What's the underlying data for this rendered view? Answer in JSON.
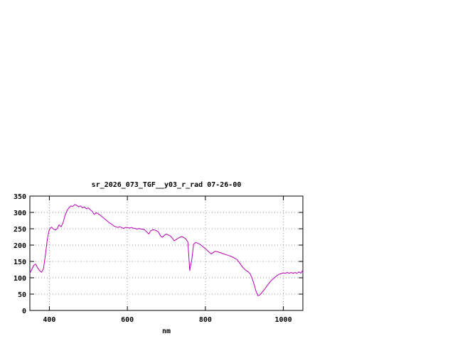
{
  "page": {
    "background": "#ffffff"
  },
  "chart_data": {
    "type": "line",
    "title": "sr_2026_073_TGF__y03_r_rad 07-26-00",
    "xlabel": "nm",
    "ylabel": "",
    "xlim": [
      350,
      1050
    ],
    "ylim": [
      0,
      350
    ],
    "xticks": [
      400,
      600,
      800,
      1000
    ],
    "yticks": [
      0,
      50,
      100,
      150,
      200,
      250,
      300,
      350
    ],
    "grid": true,
    "legend": "none",
    "line_color": "#b400b4",
    "grid_color": "#9a9a9a",
    "axis_color": "#000000",
    "series": [
      {
        "name": "sr_2026_073_TGF__y03_r_rad",
        "color": "#b400b4",
        "x": [
          350,
          355,
          360,
          365,
          370,
          375,
          380,
          385,
          390,
          395,
          400,
          405,
          410,
          415,
          420,
          425,
          430,
          435,
          440,
          445,
          450,
          455,
          460,
          465,
          470,
          475,
          480,
          485,
          490,
          495,
          500,
          505,
          510,
          515,
          520,
          525,
          530,
          535,
          540,
          545,
          550,
          555,
          560,
          565,
          570,
          575,
          580,
          585,
          590,
          595,
          600,
          605,
          610,
          615,
          620,
          625,
          630,
          635,
          640,
          645,
          650,
          655,
          660,
          665,
          670,
          675,
          680,
          685,
          690,
          695,
          700,
          705,
          710,
          715,
          720,
          725,
          730,
          735,
          740,
          745,
          750,
          755,
          760,
          765,
          770,
          775,
          780,
          785,
          790,
          795,
          800,
          805,
          810,
          815,
          820,
          825,
          830,
          835,
          840,
          845,
          850,
          855,
          860,
          865,
          870,
          875,
          880,
          885,
          890,
          895,
          900,
          905,
          910,
          915,
          920,
          925,
          930,
          935,
          940,
          945,
          950,
          955,
          960,
          965,
          970,
          975,
          980,
          985,
          990,
          995,
          1000,
          1005,
          1010,
          1015,
          1020,
          1025,
          1030,
          1035,
          1040,
          1045,
          1050
        ],
        "y": [
          115,
          125,
          138,
          142,
          130,
          122,
          117,
          128,
          170,
          220,
          248,
          255,
          250,
          246,
          250,
          262,
          256,
          268,
          290,
          305,
          314,
          320,
          318,
          324,
          322,
          317,
          320,
          314,
          317,
          311,
          314,
          308,
          303,
          294,
          299,
          296,
          292,
          287,
          282,
          277,
          272,
          267,
          264,
          259,
          256,
          254,
          256,
          254,
          251,
          254,
          254,
          252,
          254,
          252,
          251,
          249,
          251,
          249,
          249,
          246,
          240,
          234,
          244,
          247,
          246,
          244,
          240,
          228,
          224,
          230,
          234,
          231,
          228,
          222,
          213,
          217,
          221,
          224,
          226,
          223,
          219,
          210,
          122,
          155,
          203,
          208,
          206,
          203,
          199,
          194,
          189,
          184,
          178,
          173,
          177,
          181,
          180,
          178,
          176,
          174,
          172,
          170,
          168,
          166,
          163,
          160,
          157,
          150,
          142,
          133,
          127,
          122,
          118,
          112,
          98,
          80,
          58,
          45,
          48,
          55,
          62,
          70,
          78,
          86,
          93,
          98,
          103,
          108,
          111,
          113,
          115,
          114,
          116,
          114,
          116,
          114,
          116,
          114,
          118,
          114,
          124
        ]
      }
    ]
  }
}
